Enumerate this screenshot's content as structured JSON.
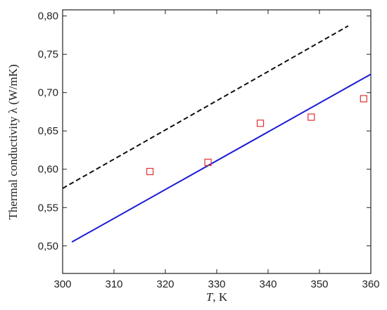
{
  "chart_data": {
    "type": "line",
    "x_label_var": "T",
    "x_label_unit": ", K",
    "y_label": "Thermal conductivity λ (W/mK)",
    "xlim": [
      300,
      360
    ],
    "xticks": [
      300,
      310,
      320,
      330,
      340,
      350,
      360
    ],
    "ylim": [
      0.464,
      0.808
    ],
    "yticks": [
      {
        "value": 0.5,
        "label": "0,50"
      },
      {
        "value": 0.55,
        "label": "0,55"
      },
      {
        "value": 0.6,
        "label": "0,60"
      },
      {
        "value": 0.65,
        "label": "0,65"
      },
      {
        "value": 0.7,
        "label": "0,70"
      },
      {
        "value": 0.75,
        "label": "0,75"
      },
      {
        "value": 0.8,
        "label": "0,80"
      }
    ],
    "series": [
      {
        "style": "dashed",
        "color": "#111111",
        "x": [
          300,
          355.6
        ],
        "values": [
          0.575,
          0.787
        ]
      },
      {
        "style": "solid",
        "color": "#1a1ad6",
        "x": [
          301.8,
          360
        ],
        "values": [
          0.505,
          0.724
        ]
      },
      {
        "style": "square",
        "color": "#e03030",
        "x": [
          317,
          328.3,
          338.5,
          348.4,
          358.6
        ],
        "values": [
          0.597,
          0.609,
          0.66,
          0.668,
          0.692
        ]
      }
    ]
  }
}
